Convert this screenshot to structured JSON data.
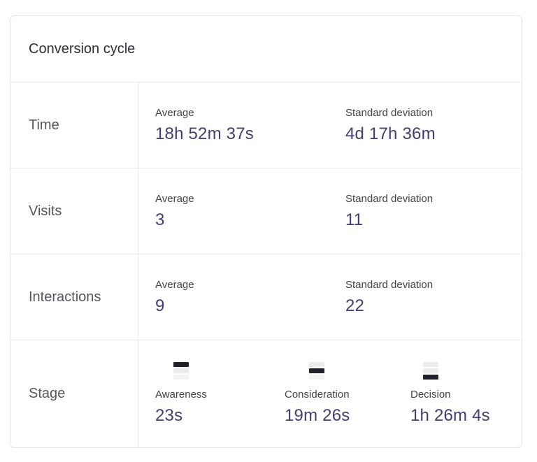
{
  "card": {
    "title": "Conversion cycle",
    "rows": [
      {
        "label": "Time",
        "metrics": [
          {
            "label": "Average",
            "value": "18h 52m 37s"
          },
          {
            "label": "Standard deviation",
            "value": "4d 17h 36m"
          }
        ]
      },
      {
        "label": "Visits",
        "metrics": [
          {
            "label": "Average",
            "value": "3"
          },
          {
            "label": "Standard deviation",
            "value": "11"
          }
        ]
      },
      {
        "label": "Interactions",
        "metrics": [
          {
            "label": "Average",
            "value": "9"
          },
          {
            "label": "Standard deviation",
            "value": "22"
          }
        ]
      }
    ],
    "stage_row": {
      "label": "Stage",
      "stages": [
        {
          "name": "Awareness",
          "value": "23s",
          "icon": "funnel-stage-top-icon",
          "highlight": 0
        },
        {
          "name": "Consideration",
          "value": "19m 26s",
          "icon": "funnel-stage-middle-icon",
          "highlight": 1
        },
        {
          "name": "Decision",
          "value": "1h 26m 4s",
          "icon": "funnel-stage-bottom-icon",
          "highlight": 2
        }
      ]
    }
  },
  "colors": {
    "value_indigo": "#423e74",
    "metric_label": "#41414b",
    "row_label": "#55555e",
    "title": "#2d2d35",
    "border": "#e7e7ea",
    "icon_highlight": "#20202a",
    "icon_muted": "#ececec"
  }
}
